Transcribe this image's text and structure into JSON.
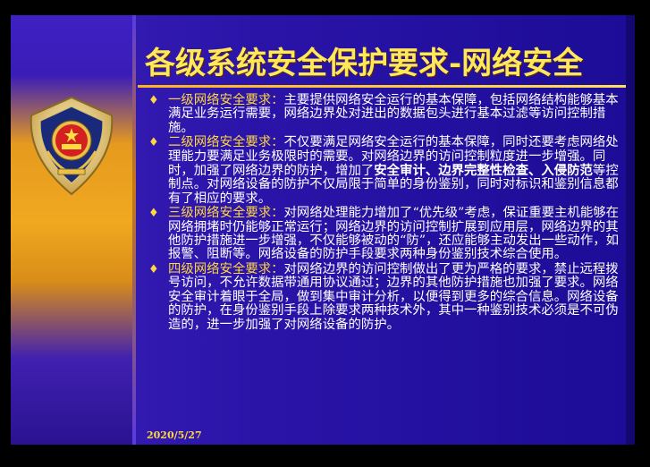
{
  "slide": {
    "title": "各级系统安全保护要求-网络安全",
    "date": "2020/5/27",
    "items": [
      {
        "lead": "一级网络安全要求：",
        "text": "主要提供网络安全运行的基本保障，包括网络结构能够基本满足业务运行需要，网络边界处对进出的数据包头进行基本过滤等访问控制措施。"
      },
      {
        "lead": "二级网络安全要求：",
        "text_a": "不仅要满足网络安全运行的基本保障，同时还要考虑网络处理能力要满足业务极限时的需要。对网络边界的访问控制粒度进一步增强。同时，加强了网络边界的防护，增加了",
        "emph": "安全审计、边界完整性检查、入侵防范",
        "text_b": "等控制点。对网络设备的防护不仅局限于简单的身份鉴别，同时对标识和鉴别信息都有了相应的要求。"
      },
      {
        "lead": "三级网络安全要求：",
        "text": "对网络处理能力增加了“优先级”考虑，保证重要主机能够在网络拥堵时仍能够正常运行；网络边界的访问控制扩展到应用层，网络边界的其他防护措施进一步增强，不仅能够被动的“防”，还应能够主动发出一些动作，如报警、阻断等。网络设备的防护手段要求两种身份鉴别技术综合使用。"
      },
      {
        "lead": "四级网络安全要求：",
        "text": "对网络边界的访问控制做出了更为严格的要求，禁止远程拨号访问，不允许数据带通用协议通过；边界的其他防护措施也加强了要求。网络安全审计着眼于全局，做到集中审计分析，以便得到更多的综合信息。网络设备的防护，在身份鉴别手段上除要求两种技术外，其中一种鉴别技术必须是不可伪造的，进一步加强了对网络设备的防护。"
      }
    ]
  }
}
